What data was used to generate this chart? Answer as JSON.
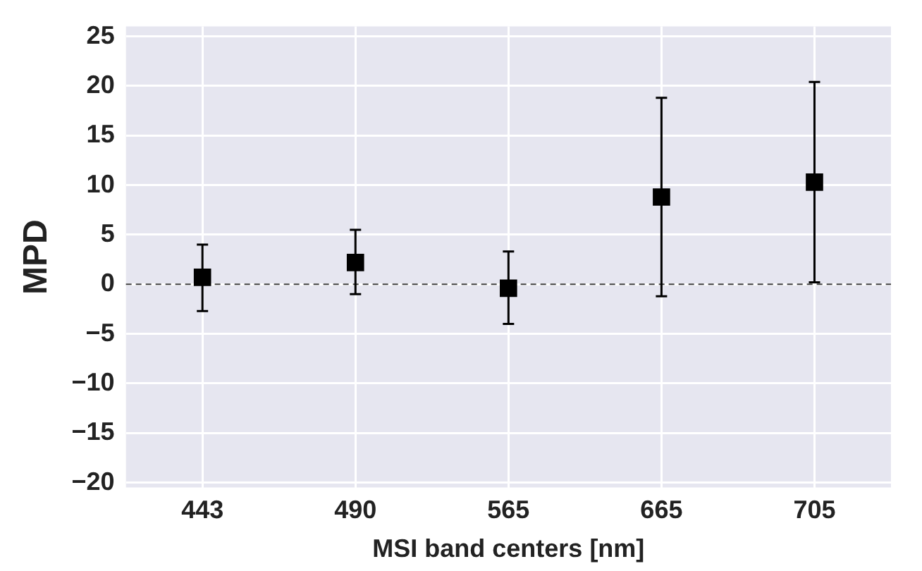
{
  "chart_data": {
    "type": "scatter",
    "xlabel": "MSI band centers [nm]",
    "ylabel": "MPD",
    "categories": [
      "443",
      "490",
      "565",
      "665",
      "705"
    ],
    "series": [
      {
        "color": "#000000",
        "values": [
          0.7,
          2.2,
          -0.4,
          8.8,
          10.3
        ],
        "errors": [
          [
            -2.7,
            4.0
          ],
          [
            -1.0,
            5.5
          ],
          [
            -4.0,
            3.3
          ],
          [
            -1.2,
            18.8
          ],
          [
            0.2,
            20.4
          ]
        ]
      }
    ],
    "ylim": [
      -20.5,
      26
    ],
    "yticks": [
      -20,
      -15,
      -10,
      -5,
      0,
      5,
      10,
      15,
      20,
      25
    ],
    "ref_lines": [
      {
        "axis": "y",
        "value": 0,
        "color": "#404040",
        "line_style": "dashed"
      }
    ],
    "grid": true,
    "marker": "square",
    "legend": false
  }
}
